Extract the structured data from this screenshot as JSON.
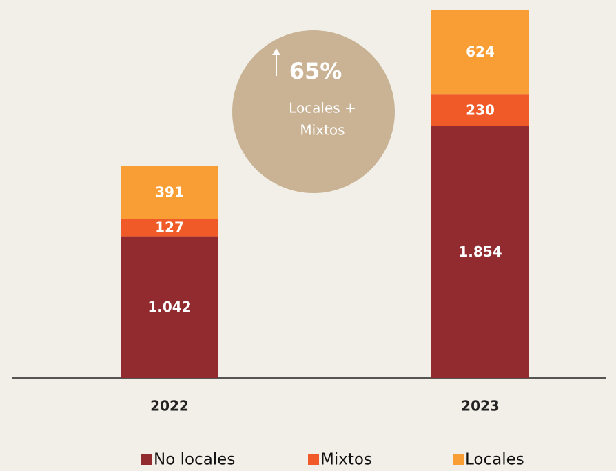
{
  "chart_data": {
    "type": "stacked_bar",
    "categories": [
      "2022",
      "2023"
    ],
    "series": [
      {
        "name": "No locales",
        "color": "#922b30",
        "values": [
          1042,
          1854
        ],
        "value_labels": [
          "1.042",
          "1.854"
        ]
      },
      {
        "name": "Mixtos",
        "color": "#f05a28",
        "values": [
          127,
          230
        ],
        "value_labels": [
          "127",
          "230"
        ]
      },
      {
        "name": "Locales",
        "color": "#f99d35",
        "values": [
          391,
          624
        ],
        "value_labels": [
          "391",
          "624"
        ]
      }
    ],
    "ylim": [
      0,
      2780
    ],
    "annotation": {
      "value": "65%",
      "lines": [
        "Locales +",
        "Mixtos"
      ]
    },
    "legend": "bottom"
  }
}
